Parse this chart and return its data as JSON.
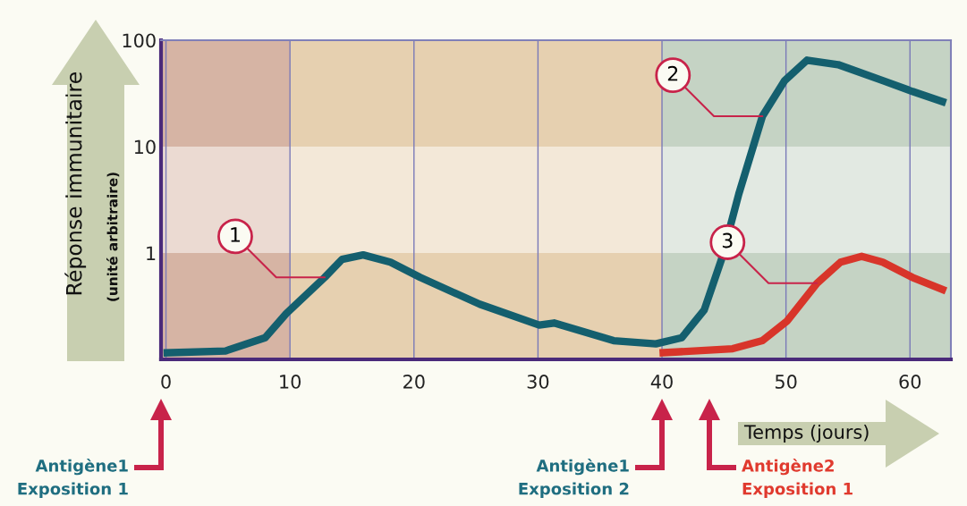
{
  "chart_data": {
    "type": "line",
    "ylabel": "Réponse immunitaire",
    "xlabel": "Temps (jours)",
    "log": "y",
    "xlim": [
      -0.4,
      63.3
    ],
    "xticks": [
      0,
      10,
      20,
      30,
      40,
      50,
      60
    ],
    "ylim": [
      0.1,
      100
    ],
    "yticks": [
      1,
      10,
      100
    ],
    "grid": "x",
    "series": [
      {
        "color": "#145f6e",
        "x": [
          -0.2,
          4.8,
          8.0,
          9.7,
          12.8,
          14.2,
          15.9,
          18.1,
          20.5,
          25.3,
          30.1,
          31.3,
          36.1,
          39.5,
          41.6,
          43.4,
          44.8,
          46.2,
          48.1,
          49.9,
          51.7,
          54.2,
          57.8,
          60.2,
          62.9
        ],
        "values": [
          0.115,
          0.12,
          0.16,
          0.27,
          0.59,
          0.87,
          0.96,
          0.82,
          0.59,
          0.33,
          0.21,
          0.22,
          0.15,
          0.14,
          0.16,
          0.29,
          0.87,
          3.6,
          19.3,
          41.8,
          65,
          59,
          41.8,
          33,
          25.8
        ]
      },
      {
        "color": "#d8352a",
        "x": [
          39.8,
          45.7,
          48.1,
          50.1,
          52.5,
          54.4,
          56.1,
          57.8,
          60.2,
          62.9
        ],
        "values": [
          0.115,
          0.126,
          0.15,
          0.23,
          0.52,
          0.82,
          0.93,
          0.82,
          0.59,
          0.44
        ]
      }
    ],
    "bands": [
      {
        "axis": "x",
        "from": -0.4,
        "to": 10,
        "color": "#d6b4a4"
      },
      {
        "axis": "x",
        "from": 10,
        "to": 40,
        "color": "#e6d0b0"
      },
      {
        "axis": "x",
        "from": 40,
        "to": 63.3,
        "color": "#c5d3c4"
      },
      {
        "axis": "y",
        "from": 1,
        "to": 10,
        "color": "#ffffff"
      }
    ],
    "annotations": [
      "(unité arbitraire)",
      {
        "text": "1",
        "x": 12.8,
        "y": 0.59
      },
      {
        "text": "2",
        "x": 48.1,
        "y": 19.3
      },
      {
        "text": "3",
        "x": 52.5,
        "y": 0.52
      },
      "Antigène1\nExposition 1",
      "Antigène1\nExposition 2",
      "Antigène2\nExposition 1"
    ]
  }
}
